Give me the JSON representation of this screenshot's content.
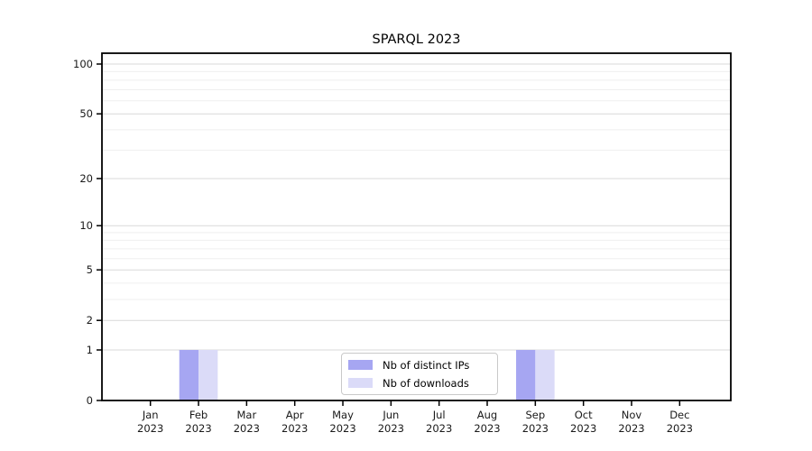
{
  "chart_data": {
    "type": "bar",
    "title": "SPARQL 2023",
    "categories": [
      "Jan 2023",
      "Feb 2023",
      "Mar 2023",
      "Apr 2023",
      "May 2023",
      "Jun 2023",
      "Jul 2023",
      "Aug 2023",
      "Sep 2023",
      "Oct 2023",
      "Nov 2023",
      "Dec 2023"
    ],
    "series": [
      {
        "name": "Nb of distinct IPs",
        "color": "#a6a6f2",
        "values": [
          0,
          1,
          0,
          0,
          0,
          0,
          0,
          0,
          1,
          0,
          0,
          0
        ]
      },
      {
        "name": "Nb of downloads",
        "color": "#dbdbf8",
        "values": [
          0,
          1,
          0,
          0,
          0,
          0,
          0,
          0,
          1,
          0,
          0,
          0
        ]
      }
    ],
    "xlabel": "",
    "ylabel": "",
    "yscale": "log1p",
    "ylim": [
      0,
      100
    ],
    "y_ticks": [
      0,
      1,
      2,
      5,
      10,
      20,
      50,
      100
    ],
    "y_minor_gridlines": [
      3,
      4,
      6,
      7,
      8,
      9,
      30,
      40,
      60,
      70,
      80,
      90
    ],
    "grid": "horizontal",
    "legend_position": "lower center",
    "colors": {
      "axis": "#000000",
      "major_grid": "#d9d9d9",
      "minor_grid": "#efefef",
      "tick_text": "#1a1a1a"
    }
  }
}
